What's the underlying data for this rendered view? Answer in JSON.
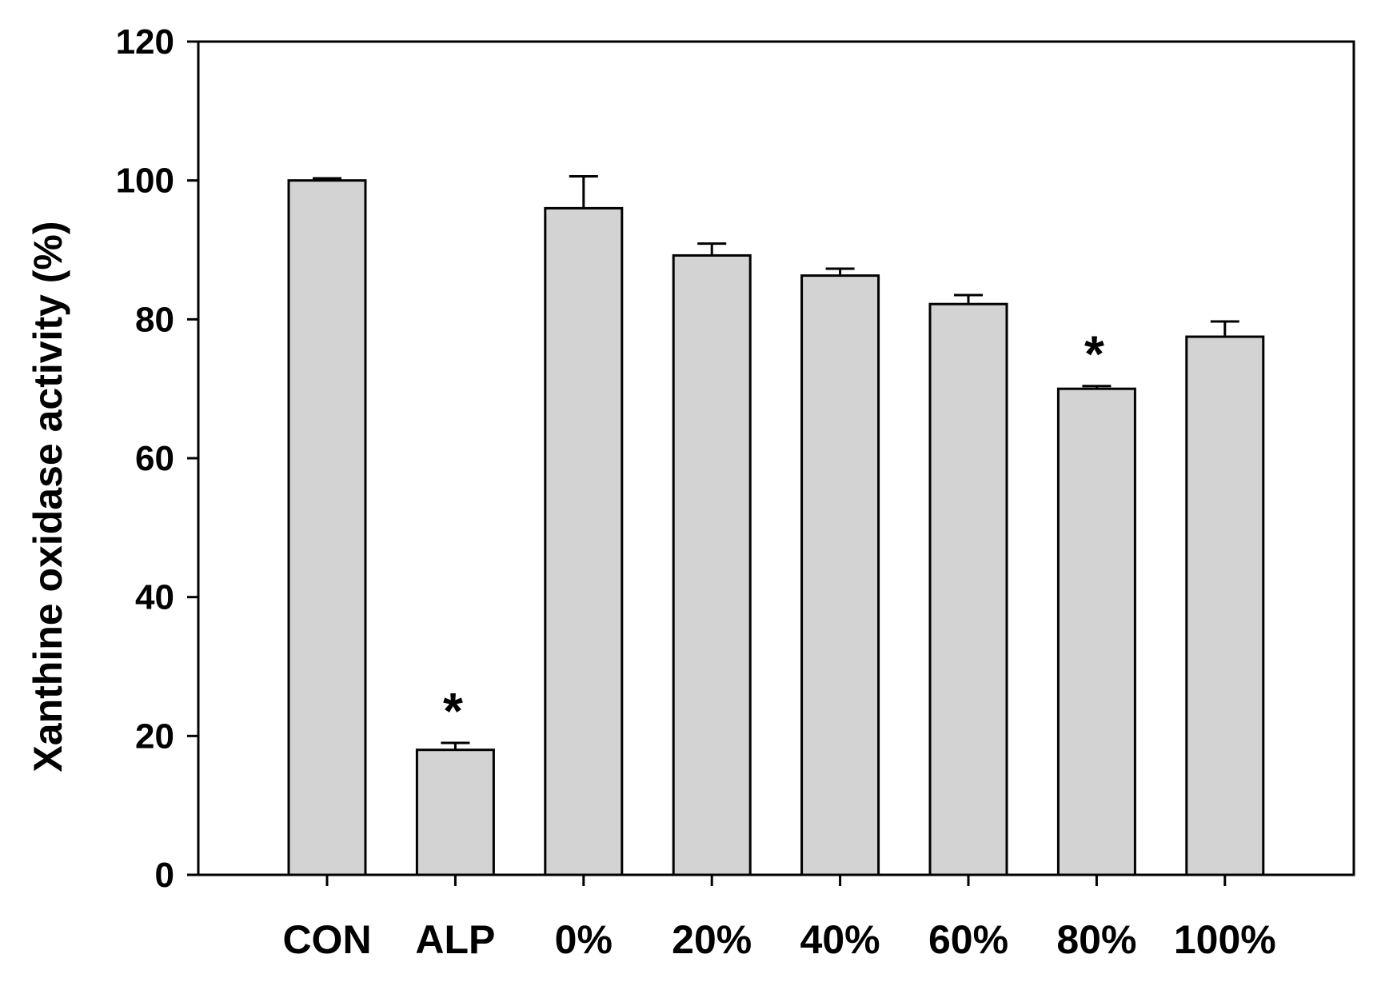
{
  "chart_data": {
    "type": "bar",
    "ylabel": "Xanthine oxidase activity (%)",
    "ylim": [
      0,
      120
    ],
    "yticks": [
      "0",
      "20",
      "40",
      "60",
      "80",
      "100",
      "120"
    ],
    "categories": [
      "CON",
      "ALP",
      "0%",
      "20%",
      "40%",
      "60%",
      "80%",
      "100%"
    ],
    "values": [
      100,
      18,
      96,
      89.2,
      86.3,
      82.2,
      70,
      77.5
    ],
    "errors": [
      0.3,
      1.0,
      4.6,
      1.7,
      1.0,
      1.3,
      0.4,
      2.2
    ],
    "significance": [
      "",
      "*",
      "",
      "",
      "",
      "",
      "*",
      ""
    ],
    "bar_color": "#d3d3d3",
    "grid": false
  }
}
